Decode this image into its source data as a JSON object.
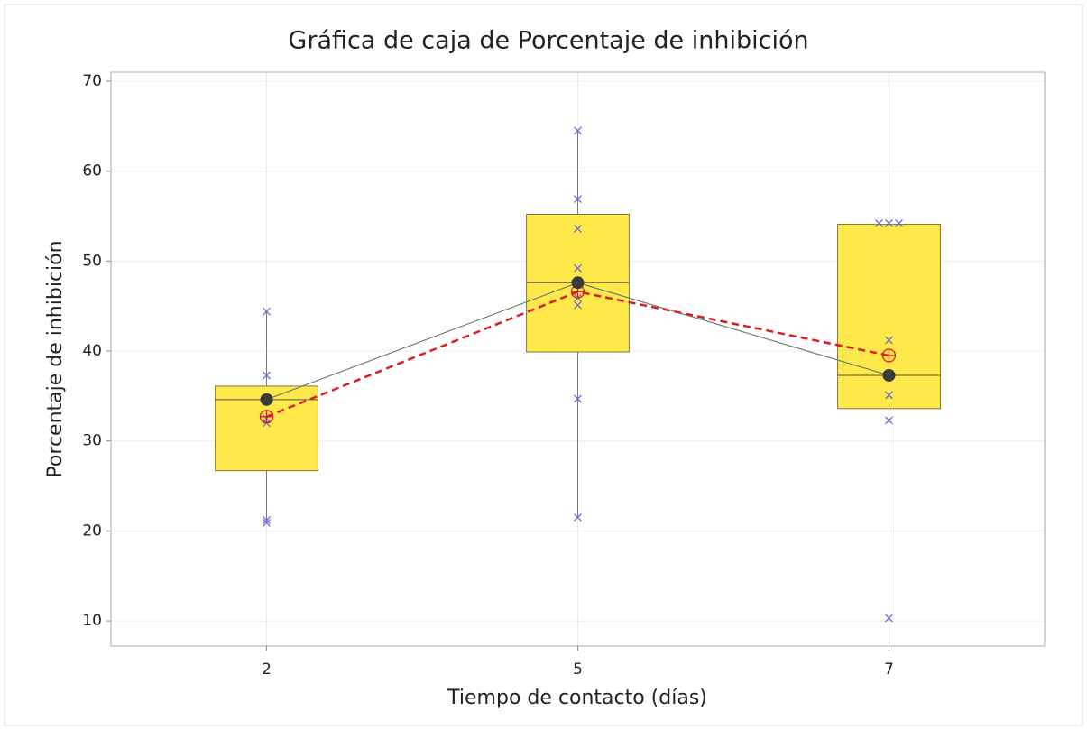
{
  "chart_data": {
    "type": "box",
    "title": "Gráfica de caja de Porcentaje de inhibición",
    "xlabel": "Tiempo de contacto (días)",
    "ylabel": "Porcentaje de inhibición",
    "categories": [
      "2",
      "5",
      "7"
    ],
    "boxes": [
      {
        "whisker_low": 20.9,
        "q1": 26.7,
        "median": 34.6,
        "q3": 36.1,
        "whisker_high": 44.4,
        "mean": 32.7
      },
      {
        "whisker_low": 21.5,
        "q1": 39.9,
        "median": 47.6,
        "q3": 55.2,
        "whisker_high": 64.5,
        "mean": 46.6
      },
      {
        "whisker_low": 10.3,
        "q1": 33.6,
        "median": 37.3,
        "q3": 54.1,
        "whisker_high": 54.1,
        "mean": 39.5
      }
    ],
    "points": [
      [
        44.4,
        37.3,
        32.5,
        32.0,
        21.2,
        20.9
      ],
      [
        64.5,
        56.9,
        53.6,
        49.2,
        45.9,
        45.1,
        34.7,
        21.5
      ],
      [
        54.2,
        54.2,
        54.2,
        41.2,
        35.1,
        32.3,
        10.3
      ]
    ],
    "box_color": "#ffe84a",
    "point_color": "#6a6ad0",
    "median_line_color": "#6d7f6d",
    "mean_color": "#d62020",
    "ylim": [
      7.2,
      71
    ],
    "yticks": [
      10,
      20,
      30,
      40,
      50,
      60,
      70
    ],
    "grid": true
  }
}
